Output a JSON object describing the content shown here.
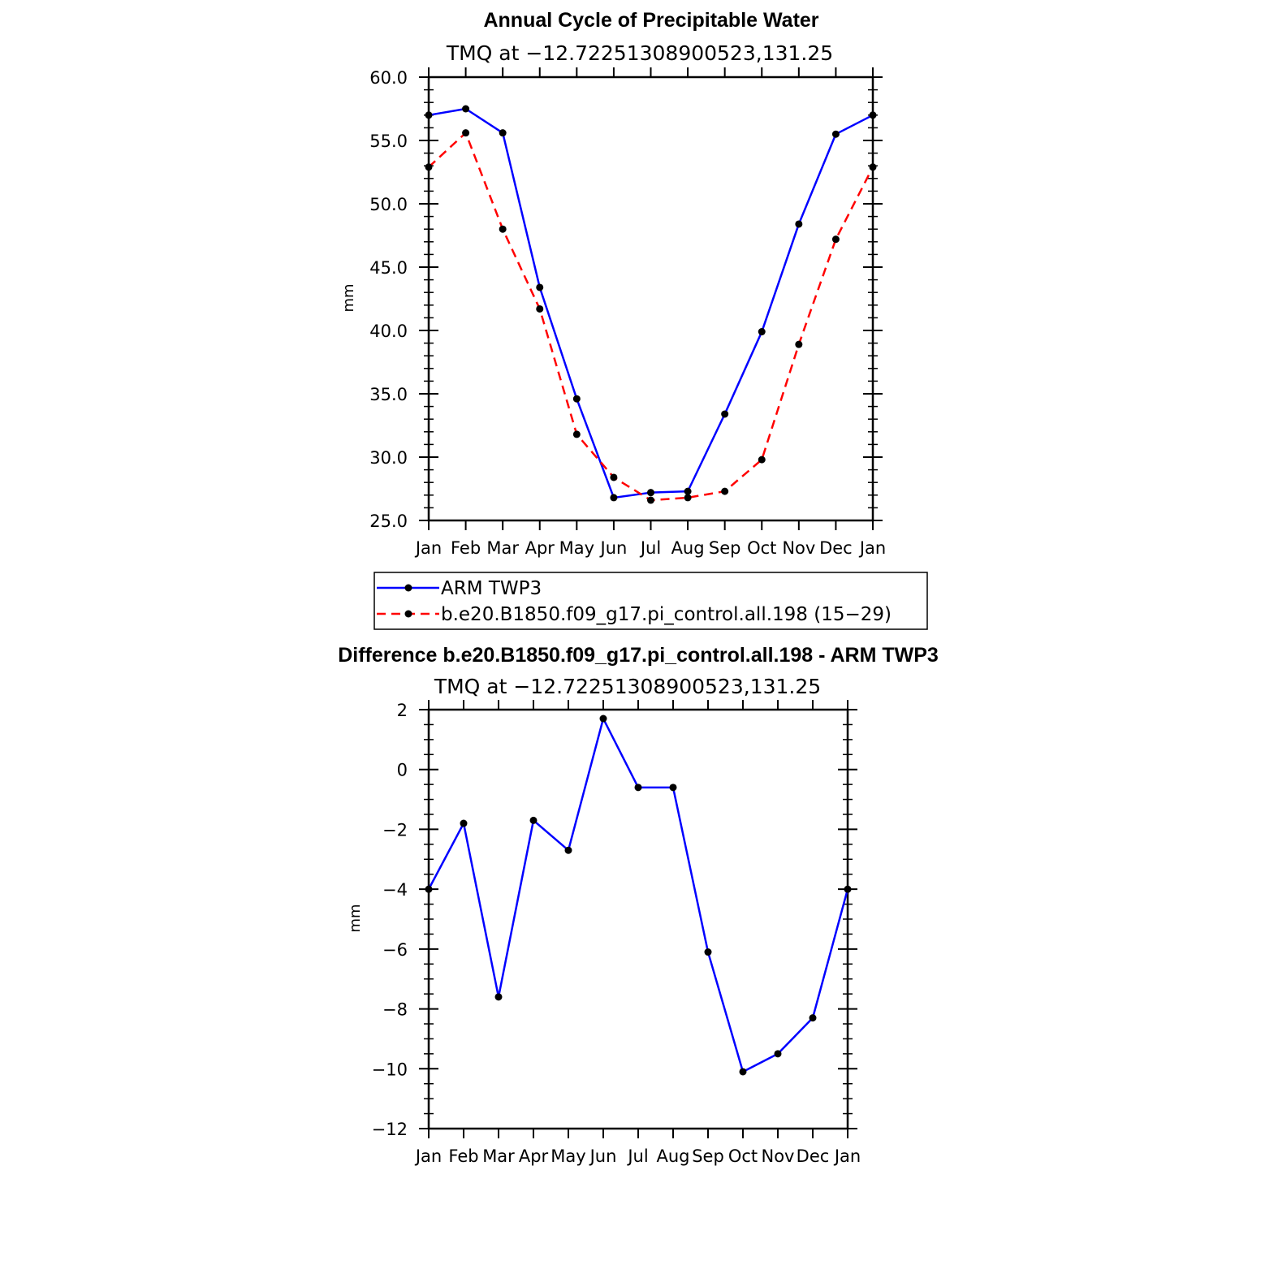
{
  "chart_data": [
    {
      "type": "line",
      "title": "Annual Cycle of Precipitable Water",
      "subtitle": "TMQ at −12.72251308900523,131.25",
      "ylabel": "mm",
      "xlabel": "",
      "categories": [
        "Jan",
        "Feb",
        "Mar",
        "Apr",
        "May",
        "Jun",
        "Jul",
        "Aug",
        "Sep",
        "Oct",
        "Nov",
        "Dec",
        "Jan"
      ],
      "ylim": [
        25.0,
        60.0
      ],
      "yticks": [
        "25.0",
        "30.0",
        "35.0",
        "40.0",
        "45.0",
        "50.0",
        "55.0",
        "60.0"
      ],
      "grid": false,
      "legend_position": "below",
      "series": [
        {
          "name": "ARM TWP3",
          "color": "#0000ff",
          "dash": "solid",
          "values": [
            57.0,
            57.5,
            55.6,
            43.4,
            34.6,
            26.8,
            27.2,
            27.3,
            33.4,
            39.9,
            48.4,
            55.5,
            57.0
          ]
        },
        {
          "name": "b.e20.B1850.f09_g17.pi_control.all.198 (15−29)",
          "color": "#ff0000",
          "dash": "dashed",
          "values": [
            52.9,
            55.6,
            48.0,
            41.7,
            31.8,
            28.4,
            26.6,
            26.8,
            27.3,
            29.8,
            38.9,
            47.2,
            52.9
          ]
        }
      ]
    },
    {
      "type": "line",
      "title": "Difference b.e20.B1850.f09_g17.pi_control.all.198 - ARM TWP3",
      "subtitle": "TMQ at −12.72251308900523,131.25",
      "ylabel": "mm",
      "xlabel": "",
      "categories": [
        "Jan",
        "Feb",
        "Mar",
        "Apr",
        "May",
        "Jun",
        "Jul",
        "Aug",
        "Sep",
        "Oct",
        "Nov",
        "Dec",
        "Jan"
      ],
      "ylim": [
        -12,
        2
      ],
      "yticks": [
        "−12",
        "−10",
        "−8",
        "−6",
        "−4",
        "−2",
        "0",
        "2"
      ],
      "grid": false,
      "series": [
        {
          "color": "#0000ff",
          "dash": "solid",
          "values": [
            -4.0,
            -1.8,
            -7.6,
            -1.7,
            -2.7,
            1.7,
            -0.6,
            -0.6,
            -6.1,
            -10.1,
            -9.5,
            -8.3,
            -4.0
          ]
        }
      ]
    }
  ]
}
